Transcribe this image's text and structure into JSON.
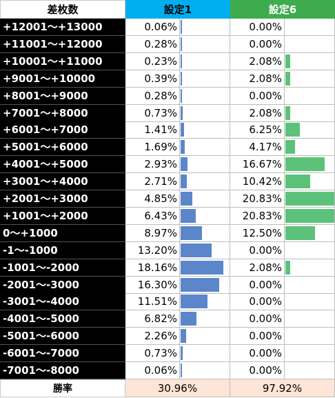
{
  "header": {
    "label": "差枚数",
    "setting1": "設定1",
    "setting6": "設定6"
  },
  "colors": {
    "setting1_header": "#00aeef",
    "setting6_header": "#3dab4e",
    "setting1_bar": "#5b86c9",
    "setting6_bar": "#5cc27a",
    "footer_bg": "#fce4d6"
  },
  "footer": {
    "label": "勝率",
    "setting1": "30.96%",
    "setting6": "97.92%"
  },
  "chart_data": {
    "type": "table",
    "bar_scale_max": 20.83,
    "categories": [
      "+12001～+13000",
      "+11001～+12000",
      "+10001～+11000",
      "+9001～+10000",
      "+8001～+9000",
      "+7001～+8000",
      "+6001～+7000",
      "+5001～+6000",
      "+4001～+5000",
      "+3001～+4000",
      "+2001～+3000",
      "+1001～+2000",
      "0～+1000",
      "-1～-1000",
      "-1001～-2000",
      "-2001～-3000",
      "-3001～-4000",
      "-4001～-5000",
      "-5001～-6000",
      "-6001～-7000",
      "-7001～-8000"
    ],
    "series": [
      {
        "name": "設定1",
        "values": [
          0.06,
          0.28,
          0.23,
          0.39,
          0.28,
          0.73,
          1.41,
          1.69,
          2.93,
          2.71,
          4.85,
          6.43,
          8.97,
          13.2,
          18.16,
          16.3,
          11.51,
          6.82,
          2.26,
          0.73,
          0.06
        ],
        "labels": [
          "0.06%",
          "0.28%",
          "0.23%",
          "0.39%",
          "0.28%",
          "0.73%",
          "1.41%",
          "1.69%",
          "2.93%",
          "2.71%",
          "4.85%",
          "6.43%",
          "8.97%",
          "13.20%",
          "18.16%",
          "16.30%",
          "11.51%",
          "6.82%",
          "2.26%",
          "0.73%",
          "0.06%"
        ]
      },
      {
        "name": "設定6",
        "values": [
          0.0,
          0.0,
          2.08,
          2.08,
          0.0,
          2.08,
          6.25,
          4.17,
          16.67,
          10.42,
          20.83,
          20.83,
          12.5,
          0.0,
          2.08,
          0.0,
          0.0,
          0.0,
          0.0,
          0.0,
          0.0
        ],
        "labels": [
          "0.00%",
          "0.00%",
          "2.08%",
          "2.08%",
          "0.00%",
          "2.08%",
          "6.25%",
          "4.17%",
          "16.67%",
          "10.42%",
          "20.83%",
          "20.83%",
          "12.50%",
          "0.00%",
          "2.08%",
          "0.00%",
          "0.00%",
          "0.00%",
          "0.00%",
          "0.00%",
          "0.00%"
        ]
      }
    ]
  }
}
